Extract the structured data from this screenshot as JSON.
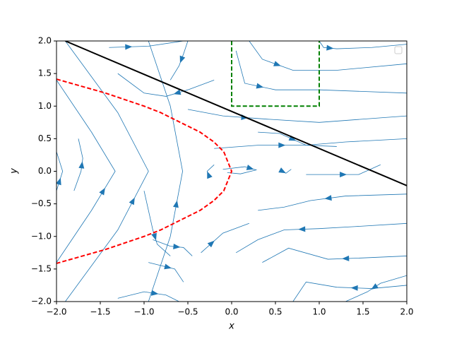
{
  "chart_data": {
    "type": "streamplot",
    "xlabel": "x",
    "ylabel": "y",
    "xlim": [
      -2,
      2
    ],
    "ylim": [
      -2,
      2
    ],
    "xticks": [
      {
        "value": -2,
        "label": "−2.0"
      },
      {
        "value": -1.5,
        "label": "−1.5"
      },
      {
        "value": -1,
        "label": "−1.0"
      },
      {
        "value": -0.5,
        "label": "−0.5"
      },
      {
        "value": 0,
        "label": "0.0"
      },
      {
        "value": 0.5,
        "label": "0.5"
      },
      {
        "value": 1,
        "label": "1.0"
      },
      {
        "value": 1.5,
        "label": "1.5"
      },
      {
        "value": 2,
        "label": "2.0"
      }
    ],
    "yticks": [
      {
        "value": -2,
        "label": "−2.0"
      },
      {
        "value": -1.5,
        "label": "−1.5"
      },
      {
        "value": -1,
        "label": "−1.0"
      },
      {
        "value": -0.5,
        "label": "−0.5"
      },
      {
        "value": 0,
        "label": "0.0"
      },
      {
        "value": 0.5,
        "label": "0.5"
      },
      {
        "value": 1,
        "label": "1.0"
      },
      {
        "value": 1.5,
        "label": "1.5"
      },
      {
        "value": 2,
        "label": "2.0"
      }
    ],
    "legend": "upper right",
    "streamlines": {
      "color": "#1f77b4",
      "lines": [
        {
          "x": [
            -2,
            -1.93,
            -2
          ],
          "y": [
            -0.3,
            0,
            0.3
          ]
        },
        {
          "x": [
            -2,
            -1.6,
            -1.33,
            -1.6,
            -2
          ],
          "y": [
            -1.4,
            -0.6,
            0,
            0.6,
            1.4
          ]
        },
        {
          "x": [
            -1.9,
            -1.3,
            -0.95,
            -1.3,
            -1.9
          ],
          "y": [
            -2,
            -0.9,
            0,
            0.9,
            2
          ]
        },
        {
          "x": [
            -0.95,
            -0.7,
            -0.56,
            -0.7,
            -0.95
          ],
          "y": [
            -2,
            -1,
            0,
            1,
            2
          ]
        },
        {
          "x": [
            -1.8,
            -1.72,
            -1.7,
            -1.75
          ],
          "y": [
            -0.3,
            0,
            0.2,
            0.5
          ]
        },
        {
          "x": [
            -1.4,
            -0.95,
            -0.55
          ],
          "y": [
            1.9,
            1.92,
            2
          ]
        },
        {
          "x": [
            -0.5,
            -0.55,
            -0.6,
            -0.7
          ],
          "y": [
            2,
            1.8,
            1.62,
            1.4
          ]
        },
        {
          "x": [
            -0.2,
            -0.5,
            -0.75,
            -1.0,
            -1.3
          ],
          "y": [
            1.4,
            1.25,
            1.15,
            1.2,
            1.5
          ]
        },
        {
          "x": [
            0.2,
            0.35,
            0.7,
            1.2,
            2
          ],
          "y": [
            2,
            1.72,
            1.55,
            1.55,
            1.65
          ]
        },
        {
          "x": [
            0.05,
            0.15,
            0.5,
            1.0,
            2
          ],
          "y": [
            1.85,
            1.35,
            1.25,
            1.25,
            1.2
          ]
        },
        {
          "x": [
            1.0,
            1.05,
            1.2,
            1.6,
            2
          ],
          "y": [
            2,
            1.9,
            1.88,
            1.9,
            1.95
          ]
        },
        {
          "x": [
            -0.5,
            -0.1,
            0.4,
            1.0,
            2
          ],
          "y": [
            0.95,
            0.85,
            0.8,
            0.75,
            0.85
          ]
        },
        {
          "x": [
            0.3,
            0.55,
            0.85,
            1.3,
            2
          ],
          "y": [
            0.6,
            0.58,
            0.4,
            0.45,
            0.5
          ]
        },
        {
          "x": [
            2,
            1.3,
            0.9,
            0.6,
            0.3
          ],
          "y": [
            -0.35,
            -0.38,
            -0.45,
            -0.55,
            -0.6
          ]
        },
        {
          "x": [
            2,
            1.4,
            1.0,
            0.6,
            0.3,
            0.05
          ],
          "y": [
            -0.8,
            -0.85,
            -0.88,
            -0.9,
            -1.05,
            -1.25
          ]
        },
        {
          "x": [
            2,
            1.5,
            1.1,
            0.65,
            0.35
          ],
          "y": [
            -1.3,
            -1.33,
            -1.35,
            -1.18,
            -1.4
          ]
        },
        {
          "x": [
            2,
            1.6,
            1.2,
            0.85,
            0.7
          ],
          "y": [
            -1.75,
            -1.8,
            -1.78,
            -1.7,
            -2
          ]
        },
        {
          "x": [
            2,
            1.7,
            1.55,
            1.3
          ],
          "y": [
            -1.6,
            -1.72,
            -1.85,
            -2
          ]
        },
        {
          "x": [
            -1.3,
            -1.0,
            -0.75,
            -0.6
          ],
          "y": [
            -1.95,
            -1.85,
            -1.9,
            -2
          ]
        },
        {
          "x": [
            -1.0,
            -0.9,
            -0.85,
            -0.7
          ],
          "y": [
            -0.3,
            -0.9,
            -1.12,
            -1.3
          ]
        },
        {
          "x": [
            -0.9,
            -0.7,
            -0.55,
            -0.45
          ],
          "y": [
            -1.05,
            -1.15,
            -1.17,
            -1.3
          ]
        },
        {
          "x": [
            -0.95,
            -0.8,
            -0.65,
            -0.55
          ],
          "y": [
            -1.4,
            -1.45,
            -1.5,
            -1.7
          ]
        },
        {
          "x": [
            -0.35,
            -0.1,
            0.2
          ],
          "y": [
            -1.25,
            -0.95,
            -0.8
          ]
        },
        {
          "x": [
            -0.1,
            0.15,
            0.28,
            0.1,
            -0.05
          ],
          "y": [
            0.03,
            0.07,
            0.02,
            -0.04,
            -0.02
          ]
        },
        {
          "x": [
            -0.25,
            -0.28,
            -0.2
          ],
          "y": [
            -0.1,
            0,
            0.1
          ]
        },
        {
          "x": [
            0.55,
            0.62,
            0.68
          ],
          "y": [
            0.02,
            -0.03,
            0.03
          ]
        },
        {
          "x": [
            0.85,
            1.1,
            1.45,
            1.7
          ],
          "y": [
            -0.05,
            -0.05,
            -0.05,
            0.1
          ]
        },
        {
          "x": [
            -0.2,
            0.3,
            0.85,
            1.2
          ],
          "y": [
            0.35,
            0.4,
            0.4,
            0.38
          ]
        }
      ]
    },
    "series": [
      {
        "color": "#000000",
        "style": "solid",
        "x": [
          -1.9,
          2
        ],
        "y": [
          2,
          -0.22
        ]
      },
      {
        "color": "#ff0000",
        "style": "dashed",
        "x": [
          -2,
          -1.44,
          -1,
          -0.81,
          -0.36,
          -0.2025,
          -0.09,
          0,
          -0.09,
          -0.2025,
          -0.36,
          -0.81,
          -1,
          -1.44,
          -2
        ],
        "y": [
          1.414,
          1.2,
          1,
          0.9,
          0.6,
          0.45,
          0.3,
          0,
          -0.3,
          -0.45,
          -0.6,
          -0.9,
          -1,
          -1.2,
          -1.414
        ]
      },
      {
        "color": "#008000",
        "style": "dashed",
        "x": [
          0,
          0,
          1,
          1
        ],
        "y": [
          2,
          1,
          1,
          2
        ]
      }
    ]
  }
}
